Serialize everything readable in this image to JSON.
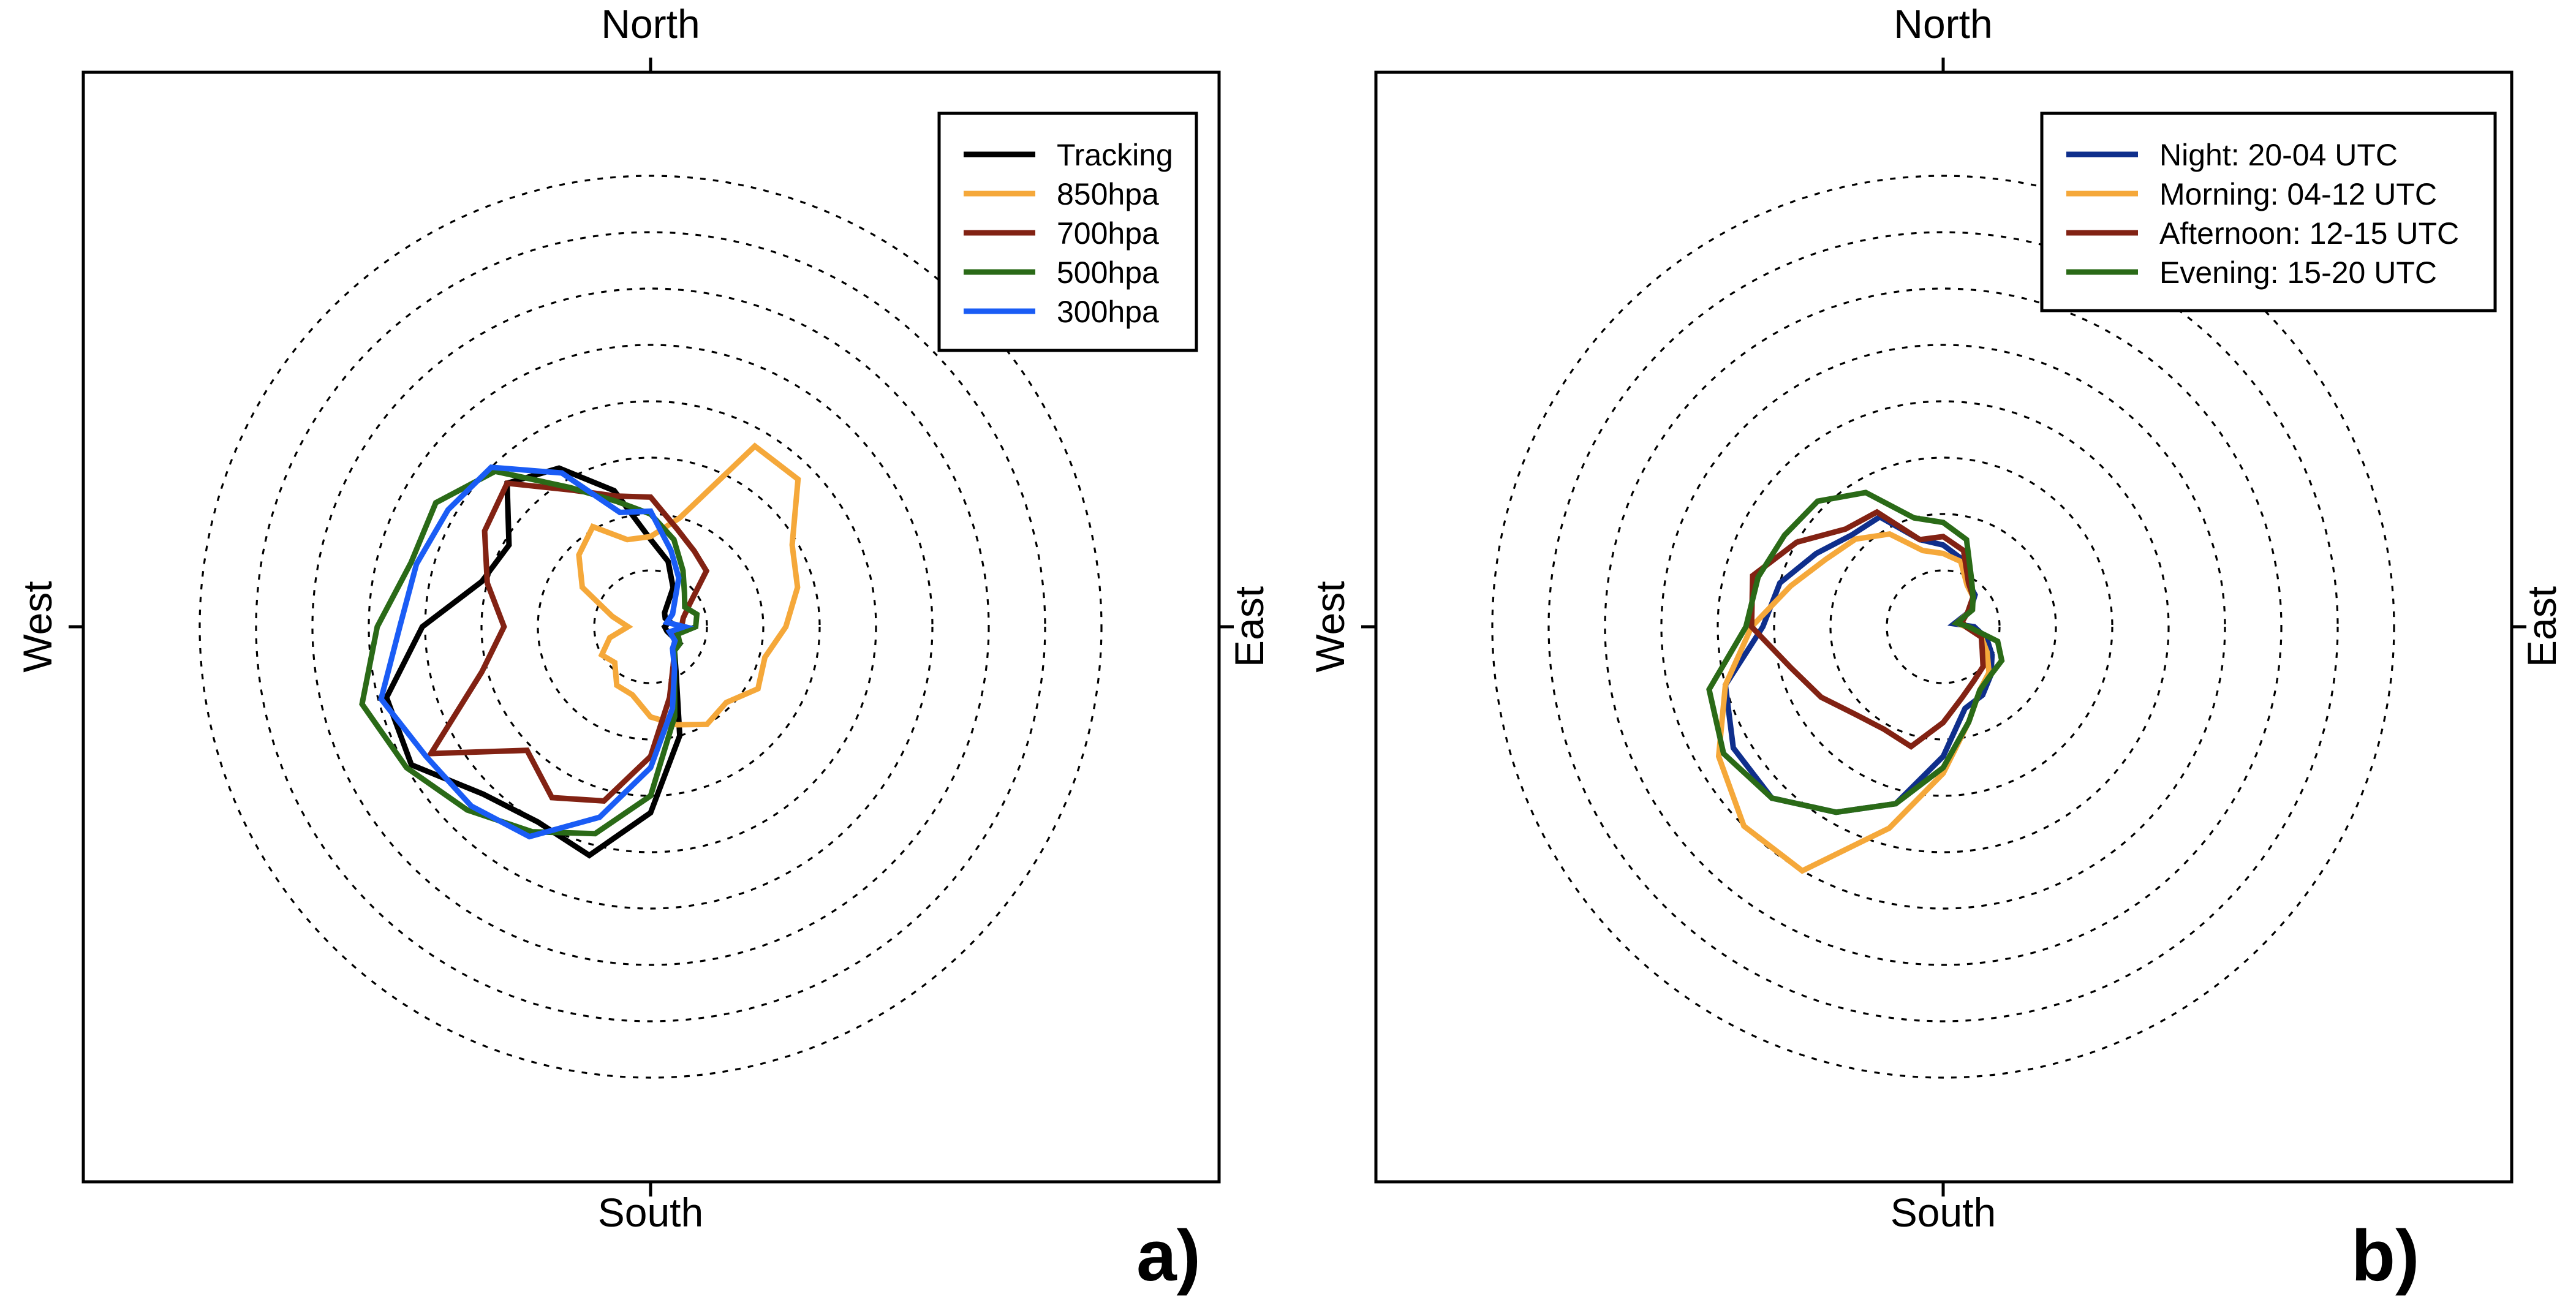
{
  "chart_data": [
    {
      "type": "radar",
      "panel_label": "a)",
      "directions": {
        "north": "North",
        "south": "South",
        "west": "West",
        "east": "East"
      },
      "angle_convention": "compass degrees clockwise from North; 0-360 step 15",
      "radial_range": [
        0,
        7.8
      ],
      "radial_grid": [
        1,
        2,
        3,
        4,
        5,
        6,
        7,
        8
      ],
      "legend_position": "top-right",
      "series": [
        {
          "name": "Tracking",
          "color": "#000000",
          "points": [
            [
              0,
              1.55
            ],
            [
              15,
              1.2
            ],
            [
              30,
              0.8
            ],
            [
              45,
              0.35
            ],
            [
              60,
              0.3
            ],
            [
              75,
              0.35
            ],
            [
              90,
              0.25
            ],
            [
              105,
              0.3
            ],
            [
              120,
              0.6
            ],
            [
              135,
              0.6
            ],
            [
              150,
              0.9
            ],
            [
              165,
              2.0
            ],
            [
              180,
              3.3
            ],
            [
              195,
              4.2
            ],
            [
              210,
              4.0
            ],
            [
              225,
              4.2
            ],
            [
              240,
              4.9
            ],
            [
              255,
              4.85
            ],
            [
              270,
              4.05
            ],
            [
              285,
              3.1
            ],
            [
              300,
              2.9
            ],
            [
              315,
              3.6
            ],
            [
              330,
              3.25
            ],
            [
              345,
              2.5
            ]
          ]
        },
        {
          "name": "850hpa",
          "color": "#f5a83a",
          "points": [
            [
              0,
              1.6
            ],
            [
              15,
              2.0
            ],
            [
              30,
              3.7
            ],
            [
              45,
              3.7
            ],
            [
              60,
              2.9
            ],
            [
              75,
              2.7
            ],
            [
              90,
              2.4
            ],
            [
              105,
              2.1
            ],
            [
              120,
              2.2
            ],
            [
              135,
              1.9
            ],
            [
              150,
              2.0
            ],
            [
              165,
              1.8
            ],
            [
              180,
              1.6
            ],
            [
              195,
              1.25
            ],
            [
              210,
              1.2
            ],
            [
              225,
              0.9
            ],
            [
              240,
              1.0
            ],
            [
              255,
              0.75
            ],
            [
              270,
              0.4
            ],
            [
              285,
              0.7
            ],
            [
              300,
              1.4
            ],
            [
              315,
              1.8
            ],
            [
              330,
              2.05
            ],
            [
              345,
              1.6
            ]
          ]
        },
        {
          "name": "700hpa",
          "color": "#822213",
          "points": [
            [
              0,
              2.3
            ],
            [
              15,
              1.8
            ],
            [
              30,
              1.55
            ],
            [
              45,
              1.4
            ],
            [
              60,
              0.8
            ],
            [
              75,
              0.6
            ],
            [
              90,
              0.55
            ],
            [
              105,
              0.4
            ],
            [
              120,
              0.5
            ],
            [
              135,
              0.6
            ],
            [
              150,
              0.8
            ],
            [
              165,
              1.3
            ],
            [
              180,
              2.3
            ],
            [
              195,
              3.2
            ],
            [
              210,
              3.5
            ],
            [
              225,
              3.1
            ],
            [
              240,
              4.5
            ],
            [
              255,
              3.1
            ],
            [
              270,
              2.6
            ],
            [
              285,
              3.0
            ],
            [
              300,
              3.4
            ],
            [
              315,
              3.6
            ],
            [
              330,
              2.8
            ],
            [
              345,
              2.4
            ]
          ]
        },
        {
          "name": "500hpa",
          "color": "#2a6a17",
          "points": [
            [
              0,
              2.0
            ],
            [
              15,
              1.6
            ],
            [
              30,
              1.15
            ],
            [
              45,
              0.85
            ],
            [
              60,
              0.7
            ],
            [
              75,
              0.85
            ],
            [
              90,
              0.8
            ],
            [
              105,
              0.5
            ],
            [
              120,
              0.6
            ],
            [
              135,
              0.6
            ],
            [
              150,
              0.85
            ],
            [
              165,
              1.65
            ],
            [
              180,
              3.0
            ],
            [
              195,
              3.8
            ],
            [
              210,
              4.2
            ],
            [
              225,
              4.6
            ],
            [
              240,
              5.0
            ],
            [
              255,
              5.3
            ],
            [
              270,
              4.85
            ],
            [
              285,
              4.4
            ],
            [
              300,
              4.4
            ],
            [
              315,
              3.9
            ],
            [
              330,
              2.85
            ],
            [
              345,
              2.3
            ]
          ]
        },
        {
          "name": "300hpa",
          "color": "#1a5cf5",
          "points": [
            [
              0,
              2.05
            ],
            [
              15,
              1.4
            ],
            [
              30,
              1.0
            ],
            [
              45,
              0.6
            ],
            [
              60,
              0.45
            ],
            [
              75,
              0.3
            ],
            [
              90,
              0.6
            ],
            [
              105,
              0.35
            ],
            [
              120,
              0.5
            ],
            [
              135,
              0.55
            ],
            [
              150,
              0.85
            ],
            [
              165,
              1.5
            ],
            [
              180,
              2.5
            ],
            [
              195,
              3.5
            ],
            [
              210,
              4.3
            ],
            [
              225,
              4.5
            ],
            [
              240,
              4.6
            ],
            [
              255,
              4.95
            ],
            [
              270,
              4.45
            ],
            [
              285,
              4.3
            ],
            [
              300,
              4.15
            ],
            [
              315,
              4.0
            ],
            [
              330,
              3.15
            ],
            [
              345,
              2.1
            ]
          ]
        }
      ]
    },
    {
      "type": "radar",
      "panel_label": "b)",
      "directions": {
        "north": "North",
        "south": "South",
        "west": "West",
        "east": "East"
      },
      "angle_convention": "compass degrees clockwise from North; 0-360 step 15",
      "radial_range": [
        0,
        7.8
      ],
      "radial_grid": [
        1,
        2,
        3,
        4,
        5,
        6,
        7,
        8
      ],
      "legend_position": "top-right",
      "series": [
        {
          "name": "Night: 20-04 UTC",
          "color": "#0f2f8c",
          "points": [
            [
              0,
              1.45
            ],
            [
              15,
              1.25
            ],
            [
              30,
              0.9
            ],
            [
              45,
              0.8
            ],
            [
              60,
              0.55
            ],
            [
              75,
              0.2
            ],
            [
              90,
              0.55
            ],
            [
              105,
              0.8
            ],
            [
              120,
              1.0
            ],
            [
              135,
              1.2
            ],
            [
              150,
              1.4
            ],
            [
              165,
              1.5
            ],
            [
              180,
              2.3
            ],
            [
              195,
              3.25
            ],
            [
              210,
              3.8
            ],
            [
              225,
              4.3
            ],
            [
              240,
              4.3
            ],
            [
              255,
              4.0
            ],
            [
              270,
              3.2
            ],
            [
              285,
              3.0
            ],
            [
              300,
              2.6
            ],
            [
              315,
              2.3
            ],
            [
              330,
              2.25
            ],
            [
              345,
              1.6
            ]
          ]
        },
        {
          "name": "Morning: 04-12 UTC",
          "color": "#f5a83a",
          "points": [
            [
              0,
              1.3
            ],
            [
              15,
              1.2
            ],
            [
              30,
              0.85
            ],
            [
              45,
              0.75
            ],
            [
              60,
              0.55
            ],
            [
              75,
              0.25
            ],
            [
              90,
              0.4
            ],
            [
              105,
              0.7
            ],
            [
              120,
              0.9
            ],
            [
              135,
              1.15
            ],
            [
              150,
              1.3
            ],
            [
              165,
              1.75
            ],
            [
              180,
              2.6
            ],
            [
              195,
              3.7
            ],
            [
              210,
              5.0
            ],
            [
              225,
              5.0
            ],
            [
              240,
              4.6
            ],
            [
              255,
              4.0
            ],
            [
              270,
              3.4
            ],
            [
              285,
              2.8
            ],
            [
              300,
              2.4
            ],
            [
              315,
              2.2
            ],
            [
              330,
              1.9
            ],
            [
              345,
              1.4
            ]
          ]
        },
        {
          "name": "Afternoon: 12-15 UTC",
          "color": "#822213",
          "points": [
            [
              0,
              1.6
            ],
            [
              15,
              1.4
            ],
            [
              30,
              0.9
            ],
            [
              45,
              0.75
            ],
            [
              60,
              0.5
            ],
            [
              75,
              0.35
            ],
            [
              90,
              0.4
            ],
            [
              105,
              0.7
            ],
            [
              120,
              0.8
            ],
            [
              135,
              1.0
            ],
            [
              150,
              1.1
            ],
            [
              165,
              1.3
            ],
            [
              180,
              1.7
            ],
            [
              195,
              2.2
            ],
            [
              210,
              2.1
            ],
            [
              225,
              2.2
            ],
            [
              240,
              2.5
            ],
            [
              255,
              2.8
            ],
            [
              270,
              3.4
            ],
            [
              285,
              3.5
            ],
            [
              300,
              3.0
            ],
            [
              315,
              2.45
            ],
            [
              330,
              2.35
            ],
            [
              345,
              1.6
            ]
          ]
        },
        {
          "name": "Evening: 15-20 UTC",
          "color": "#2a6a17",
          "points": [
            [
              0,
              1.85
            ],
            [
              15,
              1.6
            ],
            [
              30,
              1.0
            ],
            [
              45,
              0.75
            ],
            [
              60,
              0.6
            ],
            [
              75,
              0.25
            ],
            [
              90,
              0.45
            ],
            [
              105,
              1.0
            ],
            [
              120,
              1.2
            ],
            [
              135,
              1.2
            ],
            [
              150,
              1.3
            ],
            [
              165,
              1.75
            ],
            [
              180,
              2.5
            ],
            [
              195,
              3.25
            ],
            [
              210,
              3.8
            ],
            [
              225,
              4.3
            ],
            [
              240,
              4.5
            ],
            [
              255,
              4.3
            ],
            [
              270,
              3.5
            ],
            [
              285,
              3.4
            ],
            [
              300,
              3.25
            ],
            [
              315,
              3.15
            ],
            [
              330,
              2.75
            ],
            [
              345,
              2.0
            ]
          ]
        }
      ]
    }
  ]
}
